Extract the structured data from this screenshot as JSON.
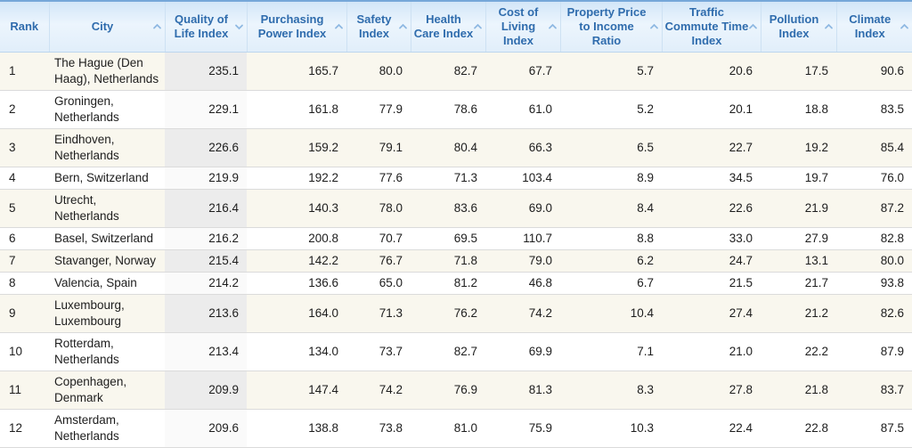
{
  "table": {
    "name": "quality-of-life-index-by-city",
    "columns": [
      {
        "key": "rank",
        "label": "Rank",
        "sortable": false,
        "sort": "none"
      },
      {
        "key": "city",
        "label": "City",
        "sortable": true,
        "sort": "none"
      },
      {
        "key": "qol",
        "label": "Quality of Life Index",
        "sortable": true,
        "sort": "desc",
        "highlight": true
      },
      {
        "key": "pp",
        "label": "Purchasing Power Index",
        "sortable": true,
        "sort": "none"
      },
      {
        "key": "safety",
        "label": "Safety Index",
        "sortable": true,
        "sort": "none"
      },
      {
        "key": "hc",
        "label": "Health Care Index",
        "sortable": true,
        "sort": "none"
      },
      {
        "key": "col",
        "label": "Cost of Living Index",
        "sortable": true,
        "sort": "none"
      },
      {
        "key": "ppir",
        "label": "Property Price to Income Ratio",
        "sortable": true,
        "sort": "none"
      },
      {
        "key": "tct",
        "label": "Traffic Commute Time Index",
        "sortable": true,
        "sort": "none"
      },
      {
        "key": "poll",
        "label": "Pollution Index",
        "sortable": true,
        "sort": "none"
      },
      {
        "key": "clim",
        "label": "Climate Index",
        "sortable": true,
        "sort": "none"
      }
    ],
    "rows": [
      {
        "rank": "1",
        "city": "The Hague (Den Haag), Netherlands",
        "values": [
          "235.1",
          "165.7",
          "80.0",
          "82.7",
          "67.7",
          "5.7",
          "20.6",
          "17.5",
          "90.6"
        ]
      },
      {
        "rank": "2",
        "city": "Groningen, Netherlands",
        "values": [
          "229.1",
          "161.8",
          "77.9",
          "78.6",
          "61.0",
          "5.2",
          "20.1",
          "18.8",
          "83.5"
        ]
      },
      {
        "rank": "3",
        "city": "Eindhoven, Netherlands",
        "values": [
          "226.6",
          "159.2",
          "79.1",
          "80.4",
          "66.3",
          "6.5",
          "22.7",
          "19.2",
          "85.4"
        ]
      },
      {
        "rank": "4",
        "city": "Bern, Switzerland",
        "values": [
          "219.9",
          "192.2",
          "77.6",
          "71.3",
          "103.4",
          "8.9",
          "34.5",
          "19.7",
          "76.0"
        ]
      },
      {
        "rank": "5",
        "city": "Utrecht, Netherlands",
        "values": [
          "216.4",
          "140.3",
          "78.0",
          "83.6",
          "69.0",
          "8.4",
          "22.6",
          "21.9",
          "87.2"
        ]
      },
      {
        "rank": "6",
        "city": "Basel, Switzerland",
        "values": [
          "216.2",
          "200.8",
          "70.7",
          "69.5",
          "110.7",
          "8.8",
          "33.0",
          "27.9",
          "82.8"
        ]
      },
      {
        "rank": "7",
        "city": "Stavanger, Norway",
        "values": [
          "215.4",
          "142.2",
          "76.7",
          "71.8",
          "79.0",
          "6.2",
          "24.7",
          "13.1",
          "80.0"
        ]
      },
      {
        "rank": "8",
        "city": "Valencia, Spain",
        "values": [
          "214.2",
          "136.6",
          "65.0",
          "81.2",
          "46.8",
          "6.7",
          "21.5",
          "21.7",
          "93.8"
        ]
      },
      {
        "rank": "9",
        "city": "Luxembourg, Luxembourg",
        "values": [
          "213.6",
          "164.0",
          "71.3",
          "76.2",
          "74.2",
          "10.4",
          "27.4",
          "21.2",
          "82.6"
        ]
      },
      {
        "rank": "10",
        "city": "Rotterdam, Netherlands",
        "values": [
          "213.4",
          "134.0",
          "73.7",
          "82.7",
          "69.9",
          "7.1",
          "21.0",
          "22.2",
          "87.9"
        ]
      },
      {
        "rank": "11",
        "city": "Copenhagen, Denmark",
        "values": [
          "209.9",
          "147.4",
          "74.2",
          "76.9",
          "81.3",
          "8.3",
          "27.8",
          "21.8",
          "83.7"
        ]
      },
      {
        "rank": "12",
        "city": "Amsterdam, Netherlands",
        "values": [
          "209.6",
          "138.8",
          "73.8",
          "81.0",
          "75.9",
          "10.3",
          "22.4",
          "22.8",
          "87.5"
        ]
      }
    ]
  },
  "colors": {
    "header_text": "#2f6cad",
    "header_top_bar": "#76a7d9",
    "sort_caret": "#8fb9e2",
    "row_stripe": "#f9f7ee",
    "sorted_column_stripe": "#ececec",
    "row_border": "#dbdbdb"
  },
  "icons": {
    "sort_asc": "chevron-up-icon",
    "sort_desc": "chevron-down-icon"
  }
}
